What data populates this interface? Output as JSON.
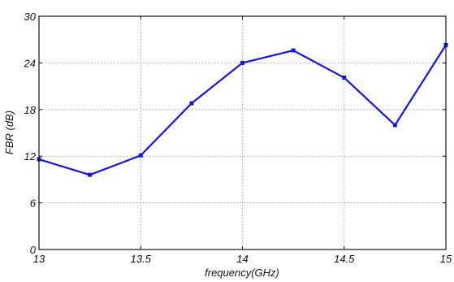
{
  "chart_data": {
    "type": "line",
    "title": "",
    "xlabel": "frequency(GHz)",
    "ylabel": "FBR (dB)",
    "xlim": [
      13,
      15
    ],
    "ylim": [
      0,
      30
    ],
    "xticks": [
      13,
      13.5,
      14,
      14.5,
      15
    ],
    "yticks": [
      0,
      6,
      12,
      18,
      24,
      30
    ],
    "xtick_labels": [
      "13",
      "13.5",
      "14",
      "14.5",
      "15"
    ],
    "ytick_labels": [
      "0",
      "6",
      "12",
      "18",
      "24",
      "30"
    ],
    "grid": true,
    "legend": "none",
    "series": [
      {
        "color": "#1414e6",
        "marker": "square",
        "x": [
          13,
          13.25,
          13.5,
          13.75,
          14,
          14.25,
          14.5,
          14.75,
          15
        ],
        "y": [
          11.6,
          9.6,
          12.1,
          18.8,
          24.0,
          25.6,
          22.1,
          16.0,
          26.3
        ]
      }
    ]
  }
}
